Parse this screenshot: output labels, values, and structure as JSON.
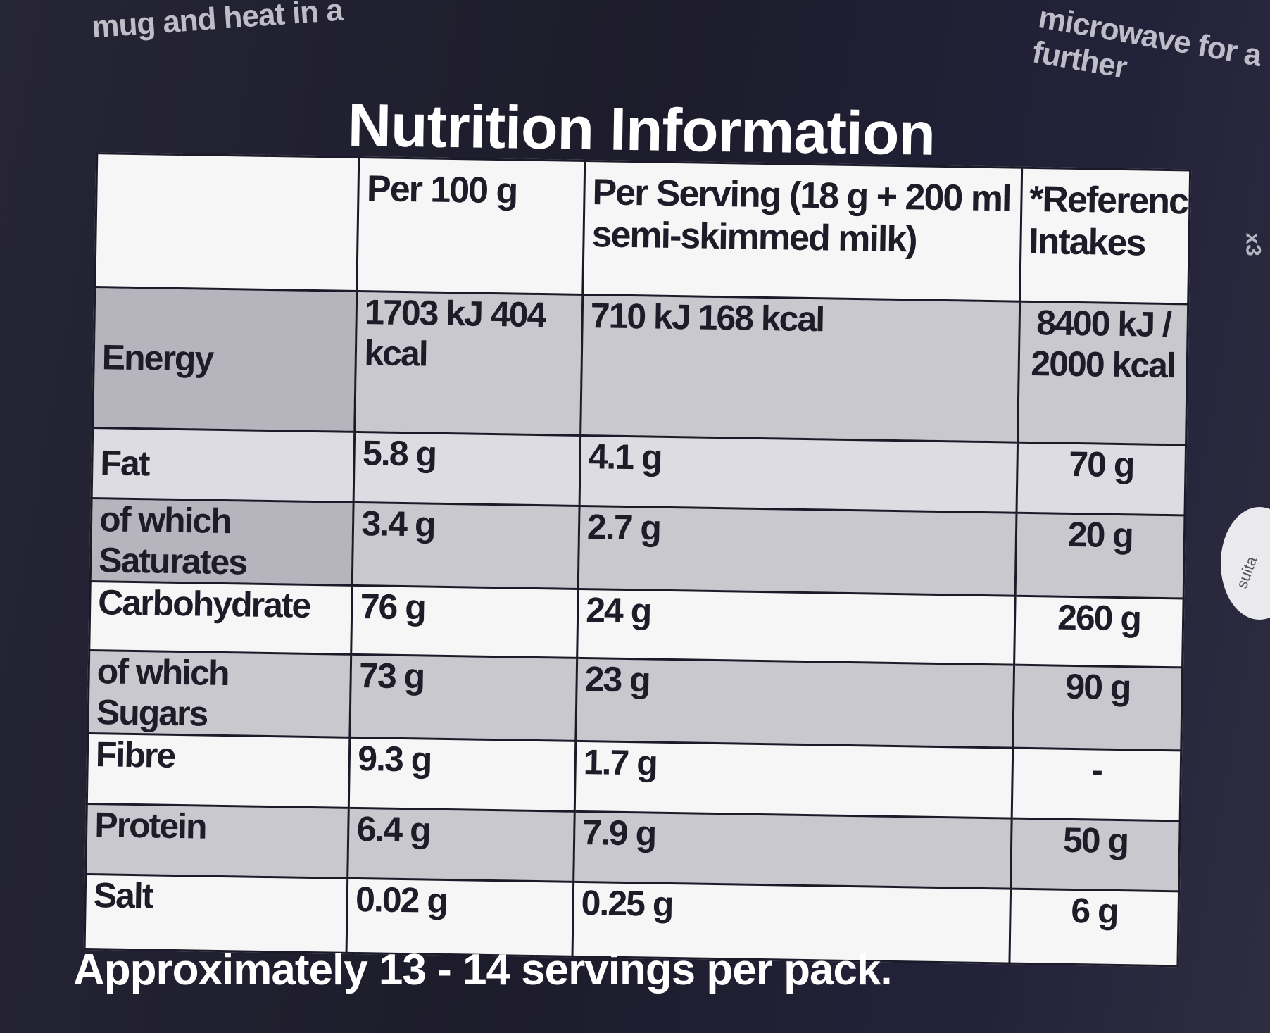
{
  "background_text": {
    "top_left": "mug and heat in a",
    "top_right": "microwave for a further",
    "side": "x3",
    "side_circle": "suita"
  },
  "title": "Nutrition Information",
  "headers": {
    "blank": "",
    "per100": "Per 100 g",
    "per_serving": "Per Serving (18 g + 200 ml semi-skimmed milk)",
    "reference": "*Reference Intakes"
  },
  "rows": [
    {
      "label": "Energy",
      "per100": "1703 kJ 404 kcal",
      "serving": "710 kJ 168 kcal",
      "ri": "8400 kJ / 2000 kcal"
    },
    {
      "label": "Fat",
      "per100": "5.8 g",
      "serving": "4.1 g",
      "ri": "70 g"
    },
    {
      "label": "of which Saturates",
      "per100": "3.4 g",
      "serving": "2.7 g",
      "ri": "20 g"
    },
    {
      "label": "Carbohydrate",
      "per100": "76 g",
      "serving": "24 g",
      "ri": "260 g"
    },
    {
      "label": "of which Sugars",
      "per100": "73 g",
      "serving": "23 g",
      "ri": "90 g"
    },
    {
      "label": "Fibre",
      "per100": "9.3 g",
      "serving": "1.7 g",
      "ri": "-"
    },
    {
      "label": "Protein",
      "per100": "6.4 g",
      "serving": "7.9 g",
      "ri": "50 g"
    },
    {
      "label": "Salt",
      "per100": "0.02 g",
      "serving": "0.25 g",
      "ri": "6 g"
    }
  ],
  "footer": "Approximately 13 - 14 servings per pack.",
  "colors": {
    "packaging": "#1e1d2c",
    "table_bg": "#f6f6f6",
    "shaded_row": "#c9c8cf",
    "text": "#1d1c28"
  }
}
